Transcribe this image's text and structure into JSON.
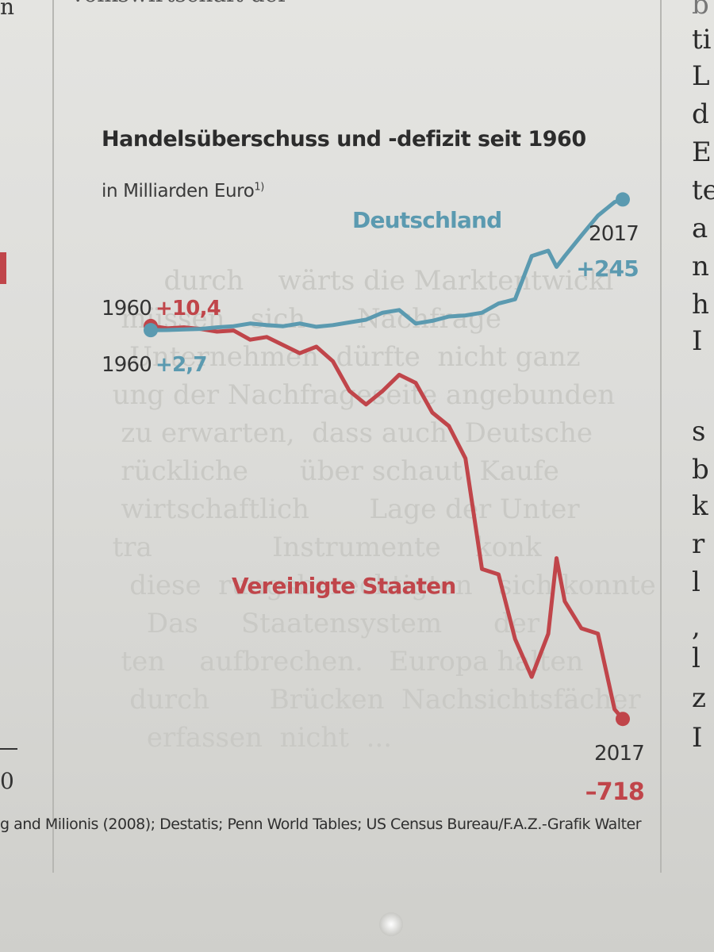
{
  "page": {
    "top_fragment": "Volkswirtschaft der",
    "left_fragments": [
      "n",
      "0"
    ],
    "right_column_letters": [
      "b",
      "ti",
      "L",
      "d",
      "E",
      "te",
      "a",
      "n",
      "h",
      "I",
      "s",
      "b",
      "k",
      "r",
      "l",
      ",",
      "l",
      "z",
      "I"
    ],
    "source": "g and Milionis (2008); Destatis; Penn World Tables; US Census Bureau/F.A.Z.-Grafik Walter"
  },
  "chart_data": {
    "type": "line",
    "title": "Handelsüberschuss und -defizit seit 1960",
    "subtitle": "in Milliarden Euro",
    "subtitle_footnote": "1)",
    "x_start": 1960,
    "x_end": 2017,
    "colors": {
      "Deutschland": "#5b9ab0",
      "Vereinigte Staaten": "#c0454a"
    },
    "series": [
      {
        "name": "Deutschland",
        "start": {
          "year": "1960",
          "value": "+2,7"
        },
        "end": {
          "year": "2017",
          "value": "+245"
        },
        "x": [
          1960,
          1962,
          1964,
          1966,
          1968,
          1970,
          1972,
          1974,
          1976,
          1978,
          1980,
          1982,
          1984,
          1986,
          1988,
          1990,
          1992,
          1994,
          1996,
          1998,
          2000,
          2002,
          2004,
          2006,
          2008,
          2009,
          2010,
          2012,
          2014,
          2016,
          2017
        ],
        "values": [
          2.7,
          3,
          4,
          5,
          8,
          10,
          15,
          12,
          10,
          15,
          9,
          12,
          17,
          22,
          35,
          40,
          15,
          20,
          28,
          30,
          35,
          52,
          60,
          140,
          150,
          120,
          140,
          178,
          215,
          240,
          245
        ]
      },
      {
        "name": "Vereinigte Staaten",
        "start": {
          "year": "1960",
          "value": "+10,4"
        },
        "end": {
          "year": "2017",
          "value": "-718"
        },
        "x": [
          1960,
          1962,
          1964,
          1966,
          1968,
          1970,
          1972,
          1974,
          1976,
          1978,
          1980,
          1982,
          1984,
          1986,
          1988,
          1990,
          1992,
          1994,
          1996,
          1998,
          2000,
          2002,
          2004,
          2006,
          2008,
          2009,
          2010,
          2012,
          2014,
          2016,
          2017
        ],
        "values": [
          10.4,
          6,
          8,
          5,
          0,
          2,
          -15,
          -10,
          -25,
          -40,
          -28,
          -55,
          -110,
          -135,
          -110,
          -80,
          -95,
          -150,
          -175,
          -235,
          -440,
          -450,
          -570,
          -640,
          -560,
          -420,
          -500,
          -550,
          -560,
          -700,
          -718
        ]
      }
    ],
    "annotations": {
      "Deutschland": "Deutschland",
      "Vereinigte Staaten": "Vereinigte Staaten"
    },
    "grid": false,
    "legend": "inline labels"
  }
}
